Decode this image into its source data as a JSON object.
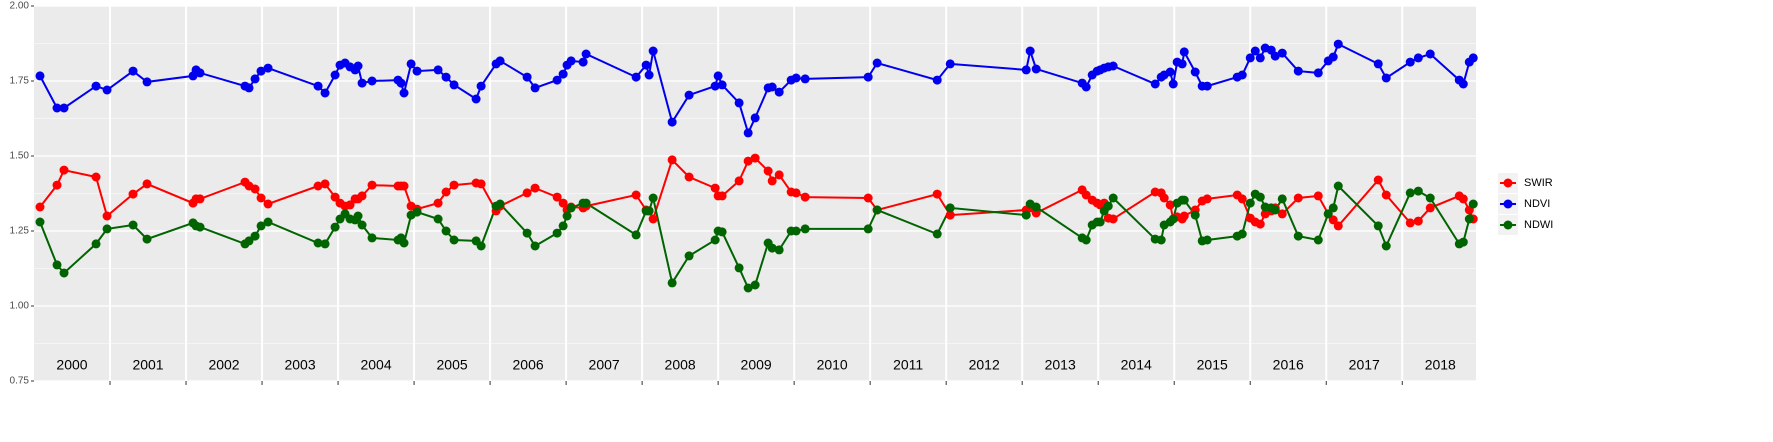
{
  "chart_data": {
    "type": "line",
    "x": [
      2000.079,
      2000.303,
      2000.395,
      2000.816,
      2000.961,
      2001.303,
      2001.487,
      2002.092,
      2002.132,
      2002.184,
      2002.776,
      2002.829,
      2002.908,
      2002.987,
      2003.079,
      2003.737,
      2003.829,
      2003.961,
      2004.026,
      2004.092,
      2004.158,
      2004.224,
      2004.263,
      2004.316,
      2004.447,
      2004.789,
      2004.829,
      2004.868,
      2004.961,
      2005.039,
      2005.316,
      2005.421,
      2005.526,
      2005.816,
      2005.882,
      2006.079,
      2006.132,
      2006.487,
      2006.592,
      2006.882,
      2006.961,
      2007.013,
      2007.066,
      2007.224,
      2007.263,
      2007.921,
      2008.053,
      2008.092,
      2008.145,
      2008.395,
      2008.618,
      2008.961,
      2009.0,
      2009.053,
      2009.276,
      2009.395,
      2009.487,
      2009.658,
      2009.711,
      2009.803,
      2009.961,
      2010.026,
      2010.145,
      2010.974,
      2011.092,
      2011.882,
      2012.053,
      2013.053,
      2013.105,
      2013.184,
      2013.789,
      2013.842,
      2013.921,
      2013.987,
      2014.026,
      2014.079,
      2014.132,
      2014.197,
      2014.75,
      2014.829,
      2014.868,
      2014.947,
      2014.987,
      2015.039,
      2015.105,
      2015.132,
      2015.276,
      2015.368,
      2015.434,
      2015.829,
      2015.895,
      2016.0,
      2016.066,
      2016.132,
      2016.197,
      2016.276,
      2016.329,
      2016.421,
      2016.632,
      2016.895,
      2017.026,
      2017.092,
      2017.158,
      2017.684,
      2017.789,
      2018.105,
      2018.211,
      2018.368,
      2018.75,
      2018.803,
      2018.882,
      2018.934
    ],
    "series": [
      {
        "name": "SWIR",
        "color": "#ff0000",
        "values": [
          1.33,
          1.403,
          1.453,
          1.43,
          1.3,
          1.373,
          1.407,
          1.343,
          1.357,
          1.357,
          1.413,
          1.4,
          1.39,
          1.36,
          1.34,
          1.4,
          1.407,
          1.363,
          1.343,
          1.333,
          1.337,
          1.357,
          1.357,
          1.367,
          1.403,
          1.4,
          1.4,
          1.4,
          1.333,
          1.323,
          1.343,
          1.38,
          1.403,
          1.41,
          1.407,
          1.317,
          1.333,
          1.377,
          1.393,
          1.363,
          1.343,
          1.32,
          1.33,
          1.327,
          1.333,
          1.37,
          1.32,
          1.317,
          1.29,
          1.487,
          1.43,
          1.393,
          1.367,
          1.367,
          1.417,
          1.483,
          1.493,
          1.45,
          1.417,
          1.437,
          1.38,
          1.377,
          1.363,
          1.36,
          1.32,
          1.373,
          1.303,
          1.32,
          1.327,
          1.31,
          1.387,
          1.37,
          1.353,
          1.343,
          1.337,
          1.343,
          1.293,
          1.29,
          1.38,
          1.377,
          1.36,
          1.337,
          1.29,
          1.297,
          1.29,
          1.3,
          1.32,
          1.35,
          1.357,
          1.37,
          1.357,
          1.293,
          1.28,
          1.273,
          1.307,
          1.317,
          1.327,
          1.307,
          1.36,
          1.367,
          1.307,
          1.287,
          1.267,
          1.42,
          1.37,
          1.277,
          1.283,
          1.327,
          1.367,
          1.357,
          1.32,
          1.29
        ]
      },
      {
        "name": "NDVI",
        "color": "#0000ee",
        "values": [
          1.767,
          1.66,
          1.66,
          1.733,
          1.72,
          1.783,
          1.747,
          1.767,
          1.787,
          1.777,
          1.733,
          1.727,
          1.757,
          1.783,
          1.793,
          1.733,
          1.71,
          1.77,
          1.803,
          1.81,
          1.797,
          1.787,
          1.8,
          1.743,
          1.75,
          1.753,
          1.743,
          1.71,
          1.807,
          1.783,
          1.787,
          1.763,
          1.737,
          1.69,
          1.733,
          1.807,
          1.817,
          1.763,
          1.727,
          1.753,
          1.773,
          1.803,
          1.817,
          1.813,
          1.84,
          1.763,
          1.803,
          1.77,
          1.85,
          1.613,
          1.703,
          1.733,
          1.767,
          1.737,
          1.677,
          1.577,
          1.627,
          1.727,
          1.73,
          1.713,
          1.753,
          1.76,
          1.757,
          1.763,
          1.81,
          1.753,
          1.807,
          1.787,
          1.85,
          1.79,
          1.743,
          1.73,
          1.77,
          1.783,
          1.787,
          1.793,
          1.797,
          1.8,
          1.74,
          1.763,
          1.77,
          1.78,
          1.74,
          1.813,
          1.807,
          1.847,
          1.78,
          1.733,
          1.733,
          1.763,
          1.77,
          1.827,
          1.85,
          1.827,
          1.86,
          1.853,
          1.833,
          1.843,
          1.783,
          1.777,
          1.817,
          1.83,
          1.873,
          1.807,
          1.76,
          1.813,
          1.827,
          1.84,
          1.753,
          1.74,
          1.813,
          1.827
        ]
      },
      {
        "name": "NDWI",
        "color": "#006400",
        "values": [
          1.28,
          1.137,
          1.11,
          1.207,
          1.257,
          1.27,
          1.223,
          1.277,
          1.267,
          1.263,
          1.207,
          1.217,
          1.233,
          1.267,
          1.28,
          1.21,
          1.207,
          1.263,
          1.29,
          1.307,
          1.29,
          1.287,
          1.3,
          1.27,
          1.227,
          1.22,
          1.227,
          1.21,
          1.303,
          1.313,
          1.29,
          1.25,
          1.22,
          1.217,
          1.2,
          1.333,
          1.34,
          1.243,
          1.2,
          1.243,
          1.267,
          1.3,
          1.327,
          1.343,
          1.343,
          1.237,
          1.317,
          1.317,
          1.36,
          1.077,
          1.167,
          1.22,
          1.25,
          1.247,
          1.127,
          1.06,
          1.07,
          1.21,
          1.193,
          1.187,
          1.25,
          1.25,
          1.257,
          1.257,
          1.32,
          1.24,
          1.327,
          1.303,
          1.34,
          1.33,
          1.227,
          1.22,
          1.27,
          1.28,
          1.28,
          1.317,
          1.333,
          1.36,
          1.223,
          1.22,
          1.27,
          1.28,
          1.29,
          1.343,
          1.353,
          1.353,
          1.303,
          1.217,
          1.22,
          1.233,
          1.24,
          1.343,
          1.373,
          1.363,
          1.33,
          1.327,
          1.32,
          1.357,
          1.233,
          1.22,
          1.307,
          1.327,
          1.4,
          1.267,
          1.2,
          1.377,
          1.383,
          1.36,
          1.207,
          1.213,
          1.29,
          1.34
        ]
      }
    ],
    "xlim": [
      2000,
      2018.97
    ],
    "xticks": [
      2001,
      2002,
      2003,
      2004,
      2005,
      2006,
      2007,
      2008,
      2009,
      2010,
      2011,
      2012,
      2013,
      2014,
      2015,
      2016,
      2017,
      2018
    ],
    "ylim": [
      0.75,
      2.0
    ],
    "yticks": [
      {
        "value": 0.75,
        "label": "0.75"
      },
      {
        "value": 1.0,
        "label": "1.00"
      },
      {
        "value": 1.25,
        "label": "1.25"
      },
      {
        "value": 1.5,
        "label": "1.50"
      },
      {
        "value": 1.75,
        "label": "1.75"
      },
      {
        "value": 2.0,
        "label": "2.00"
      }
    ],
    "annotations": [
      {
        "text": "2000",
        "x": 2000.5,
        "y": 0.8
      },
      {
        "text": "2001",
        "x": 2001.5,
        "y": 0.8
      },
      {
        "text": "2002",
        "x": 2002.5,
        "y": 0.8
      },
      {
        "text": "2003",
        "x": 2003.5,
        "y": 0.8
      },
      {
        "text": "2004",
        "x": 2004.5,
        "y": 0.8
      },
      {
        "text": "2005",
        "x": 2005.5,
        "y": 0.8
      },
      {
        "text": "2006",
        "x": 2006.5,
        "y": 0.8
      },
      {
        "text": "2007",
        "x": 2007.5,
        "y": 0.8
      },
      {
        "text": "2008",
        "x": 2008.5,
        "y": 0.8
      },
      {
        "text": "2009",
        "x": 2009.5,
        "y": 0.8
      },
      {
        "text": "2010",
        "x": 2010.5,
        "y": 0.8
      },
      {
        "text": "2011",
        "x": 2011.5,
        "y": 0.8
      },
      {
        "text": "2012",
        "x": 2012.5,
        "y": 0.8
      },
      {
        "text": "2013",
        "x": 2013.5,
        "y": 0.8
      },
      {
        "text": "2014",
        "x": 2014.5,
        "y": 0.8
      },
      {
        "text": "2015",
        "x": 2015.5,
        "y": 0.8
      },
      {
        "text": "2016",
        "x": 2016.5,
        "y": 0.8
      },
      {
        "text": "2017",
        "x": 2017.5,
        "y": 0.8
      },
      {
        "text": "2018",
        "x": 2018.5,
        "y": 0.8
      }
    ],
    "legend_order": [
      0,
      1,
      2
    ],
    "legend": "right",
    "grid": true
  }
}
